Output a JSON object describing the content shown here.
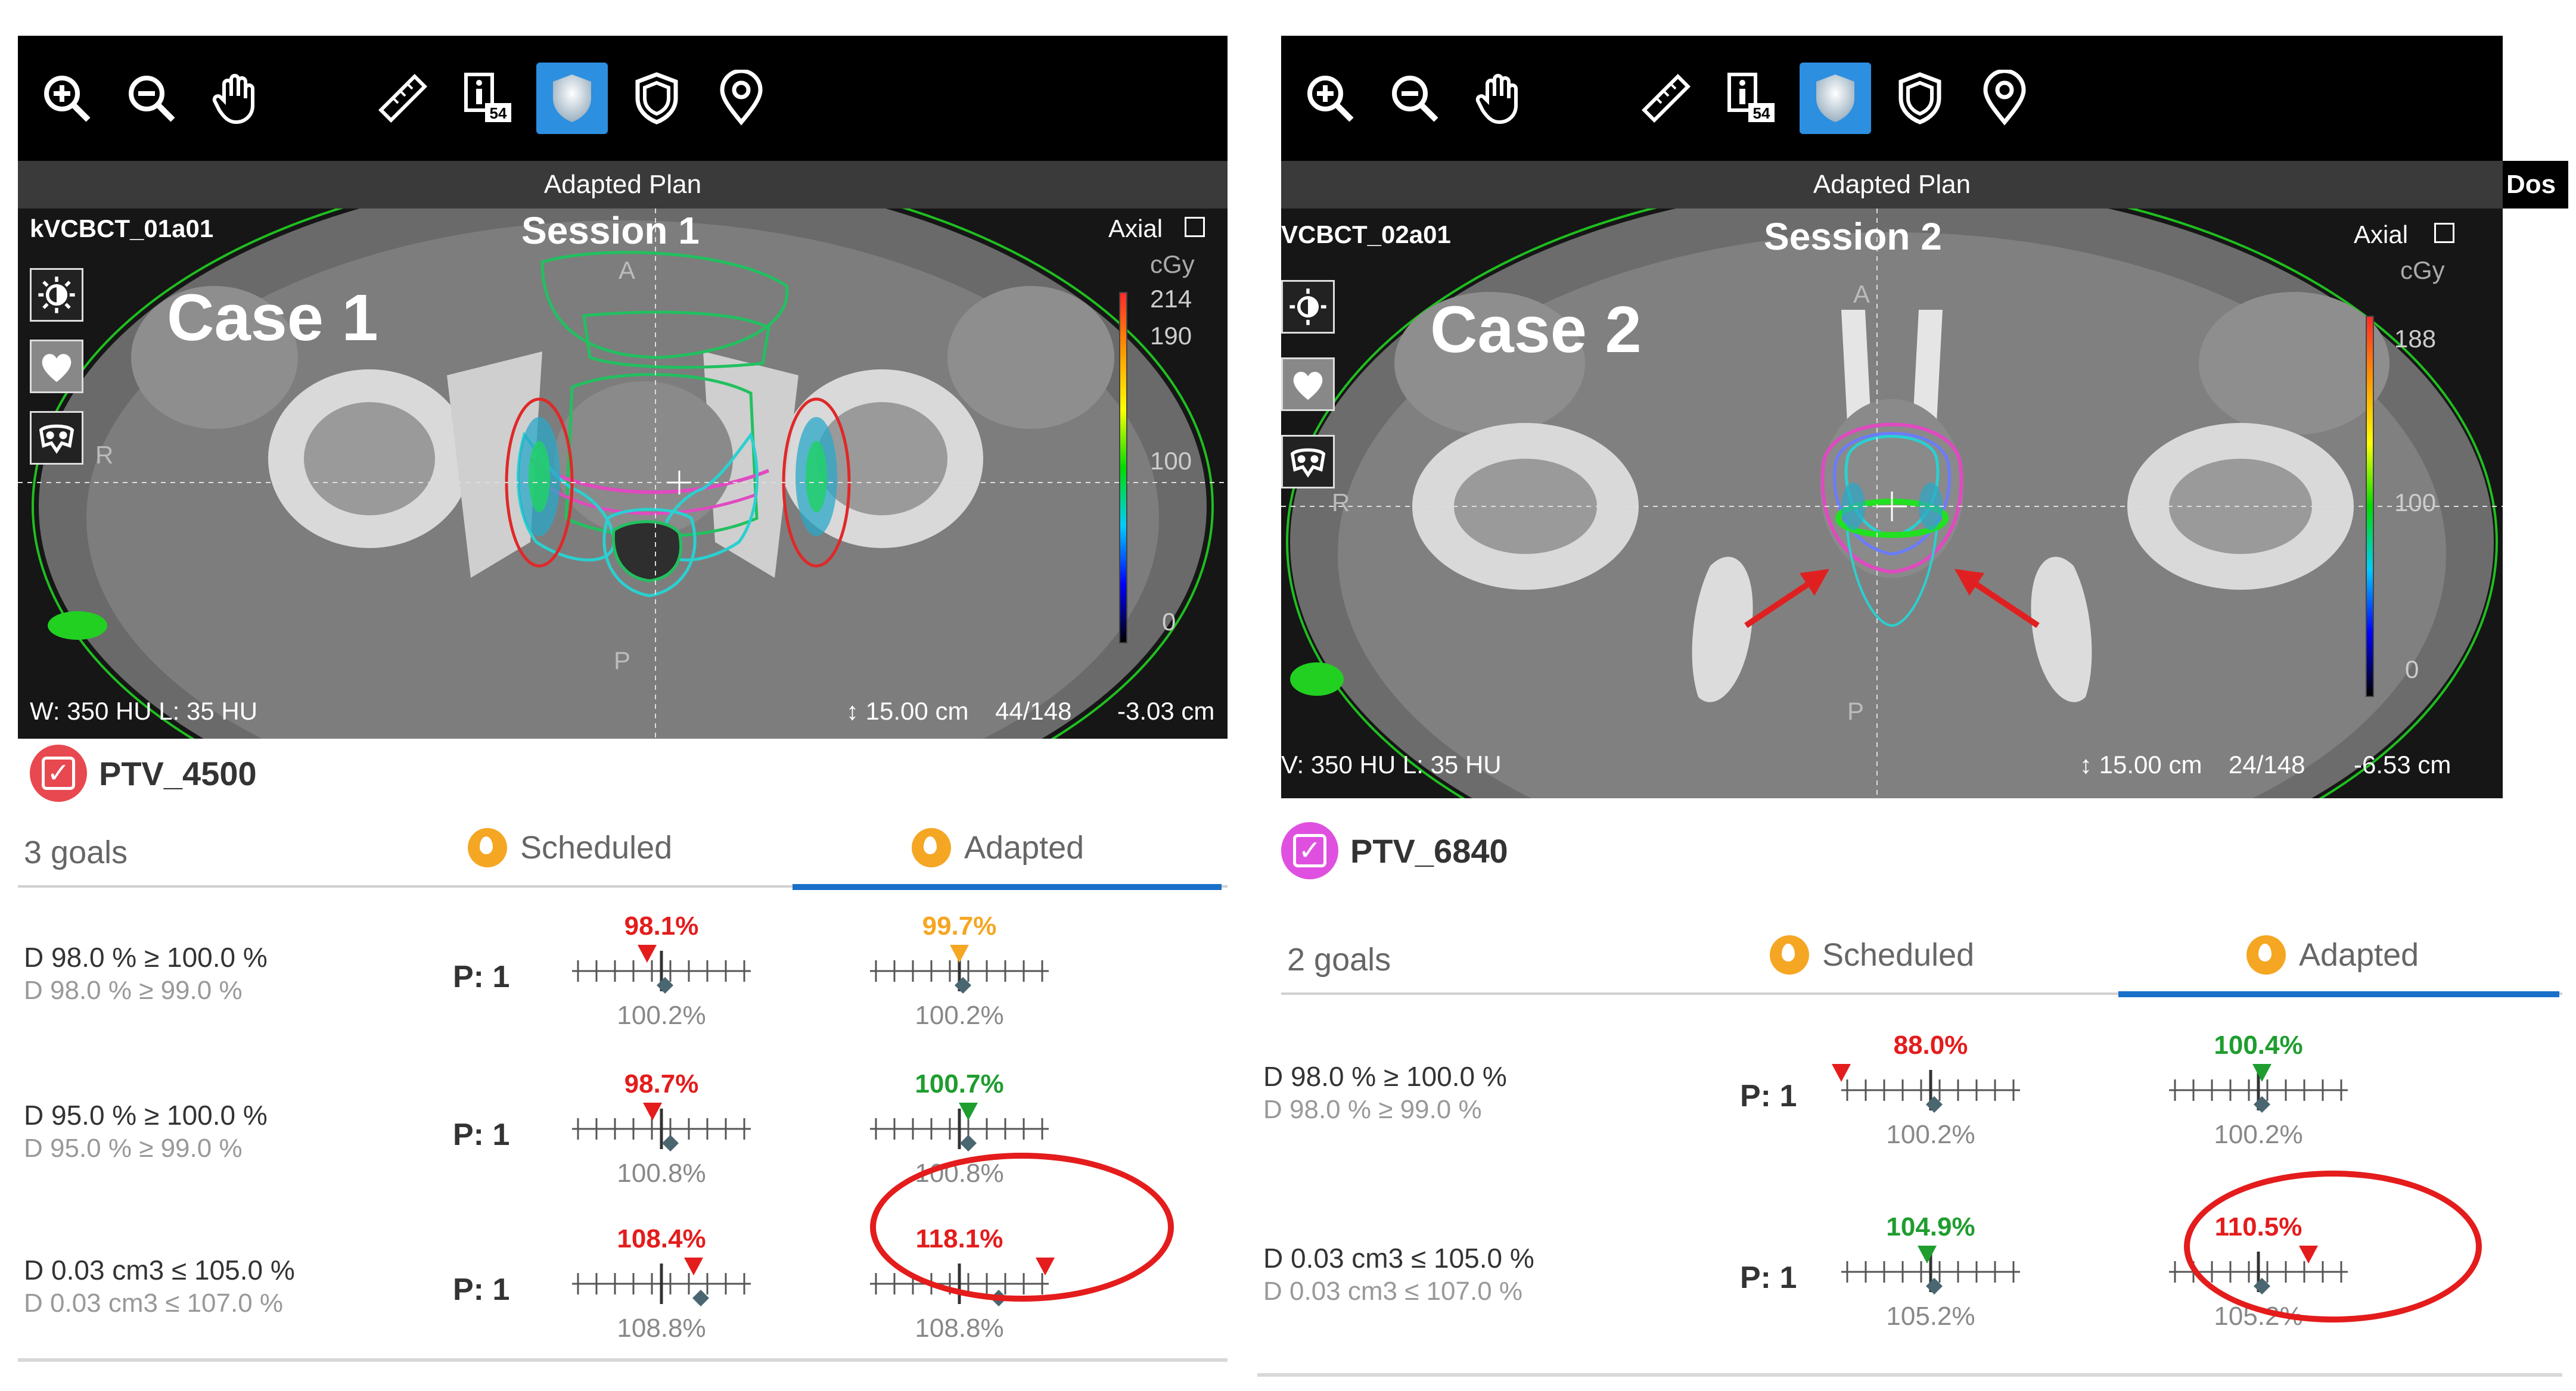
{
  "colors": {
    "fail": "#e41c1c",
    "pass": "#1f9d2f",
    "warn": "#f5a623",
    "marker": "#4a6670",
    "tab_active": "#1a6fc9",
    "ptv_4500": "#e8484f",
    "ptv_6840": "#e050e0"
  },
  "left": {
    "toolbar": {
      "icons": [
        "zoom-in-icon",
        "zoom-out-icon",
        "pan-hand-icon",
        "ruler-icon",
        "info-icon",
        "shield-filled-icon",
        "shield-outline-icon",
        "location-pin-icon"
      ],
      "info_badge": "54"
    },
    "plan_bar": "Adapted Plan",
    "viewer": {
      "scan_id": "kVCBCT_01a01",
      "session": "Session 1",
      "case": "Case 1",
      "orientation": "Axial",
      "unit": "cGy",
      "scale_labels": [
        "214",
        "190",
        "100",
        "0"
      ],
      "dir_a": "A",
      "dir_r": "R",
      "dir_p": "P",
      "window_level": "W: 350 HU   L: 35 HU",
      "slice_thickness": "15.00 cm",
      "slice_index": "44/148",
      "slice_pos": "-3.03 cm"
    },
    "structure": "PTV_4500",
    "goals_count": "3 goals",
    "col_scheduled": "Scheduled",
    "col_adapted": "Adapted",
    "goals": [
      {
        "primary": "D 98.0 % ≥ 100.0 %",
        "secondary": "D 98.0 % ≥ 99.0 %",
        "priority": "P: 1",
        "scheduled": {
          "top": "98.1%",
          "top_status": "fail",
          "bottom": "100.2%",
          "tri_pos": 0.42,
          "dia_pos": 0.52
        },
        "adapted": {
          "top": "99.7%",
          "top_status": "warn",
          "bottom": "100.2%",
          "tri_pos": 0.5,
          "dia_pos": 0.52
        }
      },
      {
        "primary": "D 95.0 % ≥ 100.0 %",
        "secondary": "D 95.0 % ≥ 99.0 %",
        "priority": "P: 1",
        "scheduled": {
          "top": "98.7%",
          "top_status": "fail",
          "bottom": "100.8%",
          "tri_pos": 0.45,
          "dia_pos": 0.55
        },
        "adapted": {
          "top": "100.7%",
          "top_status": "pass",
          "bottom": "100.8%",
          "tri_pos": 0.55,
          "dia_pos": 0.55
        }
      },
      {
        "primary": "D 0.03 cm3 ≤ 105.0 %",
        "secondary": "D 0.03 cm3 ≤ 107.0 %",
        "priority": "P: 1",
        "scheduled": {
          "top": "108.4%",
          "top_status": "fail",
          "bottom": "108.8%",
          "tri_pos": 0.68,
          "dia_pos": 0.72
        },
        "adapted": {
          "top": "118.1%",
          "top_status": "fail",
          "bottom": "108.8%",
          "tri_pos": 0.98,
          "dia_pos": 0.72
        }
      }
    ]
  },
  "right": {
    "toolbar": {
      "icons": [
        "zoom-in-icon",
        "zoom-out-icon",
        "pan-hand-icon",
        "ruler-icon",
        "info-icon",
        "shield-filled-icon",
        "shield-outline-icon",
        "location-pin-icon"
      ],
      "info_badge": "54"
    },
    "plan_bar": "Adapted Plan",
    "dose_tag": "Dos",
    "viewer": {
      "scan_id": "VCBCT_02a01",
      "session": "Session 2",
      "case": "Case 2",
      "orientation": "Axial",
      "unit": "cGy",
      "scale_labels": [
        "188",
        "100",
        "0"
      ],
      "dir_a": "A",
      "dir_r": "R",
      "dir_p": "P",
      "window_level": "V: 350 HU   L: 35 HU",
      "slice_thickness": "15.00 cm",
      "slice_index": "24/148",
      "slice_pos": "-6.53 cm"
    },
    "structure": "PTV_6840",
    "goals_count": "2 goals",
    "col_scheduled": "Scheduled",
    "col_adapted": "Adapted",
    "goals": [
      {
        "primary": "D 98.0 % ≥ 100.0 %",
        "secondary": "D 98.0 % ≥ 99.0 %",
        "priority": "P: 1",
        "scheduled": {
          "top": "88.0%",
          "top_status": "fail",
          "bottom": "100.2%",
          "tri_pos": 0.0,
          "dia_pos": 0.52
        },
        "adapted": {
          "top": "100.4%",
          "top_status": "pass",
          "bottom": "100.2%",
          "tri_pos": 0.52,
          "dia_pos": 0.52
        }
      },
      {
        "primary": "D 0.03 cm3 ≤ 105.0 %",
        "secondary": "D 0.03 cm3 ≤ 107.0 %",
        "priority": "P: 1",
        "scheduled": {
          "top": "104.9%",
          "top_status": "pass",
          "bottom": "105.2%",
          "tri_pos": 0.48,
          "dia_pos": 0.52
        },
        "adapted": {
          "top": "110.5%",
          "top_status": "fail",
          "bottom": "105.2%",
          "tri_pos": 0.78,
          "dia_pos": 0.52
        }
      }
    ]
  }
}
